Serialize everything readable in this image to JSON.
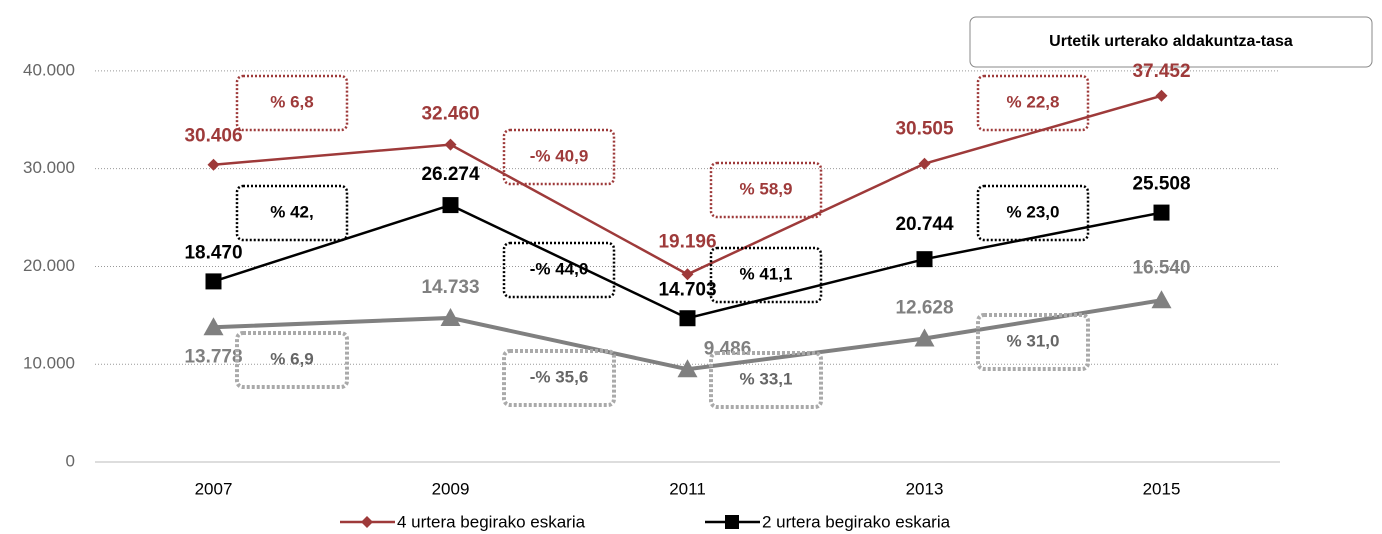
{
  "chart_data": {
    "type": "line",
    "annotation": "Urtetik urterako aldakuntza-tasa",
    "categories": [
      "2007",
      "2009",
      "2011",
      "2013",
      "2015"
    ],
    "series": [
      {
        "name": "4 urtera begirako eskaria",
        "color": "#9e3a3a",
        "marker": "diamond",
        "values": [
          30406,
          32460,
          19196,
          30505,
          37452
        ],
        "value_labels": [
          "30.406",
          "32.460",
          "19.196",
          "30.505",
          "37.452"
        ],
        "change_labels": [
          "% 6,8",
          "-% 40,9",
          "% 58,9",
          "% 22,8"
        ]
      },
      {
        "name": "2 urtera begirako eskaria",
        "color": "#000000",
        "marker": "square",
        "values": [
          18470,
          26274,
          14703,
          20744,
          25508
        ],
        "value_labels": [
          "18.470",
          "26.274",
          "14.703",
          "20.744",
          "25.508"
        ],
        "change_labels": [
          "% 42,",
          "-% 44,0",
          "% 41,1",
          "% 23,0"
        ]
      },
      {
        "color": "#808080",
        "marker": "triangle",
        "values": [
          13778,
          14733,
          9486,
          12628,
          16540
        ],
        "value_labels": [
          "13.778",
          "14.733",
          "9.486",
          "12.628",
          "16.540"
        ],
        "change_labels": [
          "% 6,9",
          "-% 35,6",
          "% 33,1",
          "% 31,0"
        ]
      }
    ],
    "ylim": [
      0,
      45000
    ],
    "yticks": [
      0,
      {
        "value": 10000,
        "label": "10.000"
      },
      {
        "value": 20000,
        "label": "20.000"
      },
      {
        "value": 30000,
        "label": "30.000"
      },
      {
        "value": 40000,
        "label": "40.000"
      }
    ],
    "grid": true,
    "legend": "bottom"
  }
}
